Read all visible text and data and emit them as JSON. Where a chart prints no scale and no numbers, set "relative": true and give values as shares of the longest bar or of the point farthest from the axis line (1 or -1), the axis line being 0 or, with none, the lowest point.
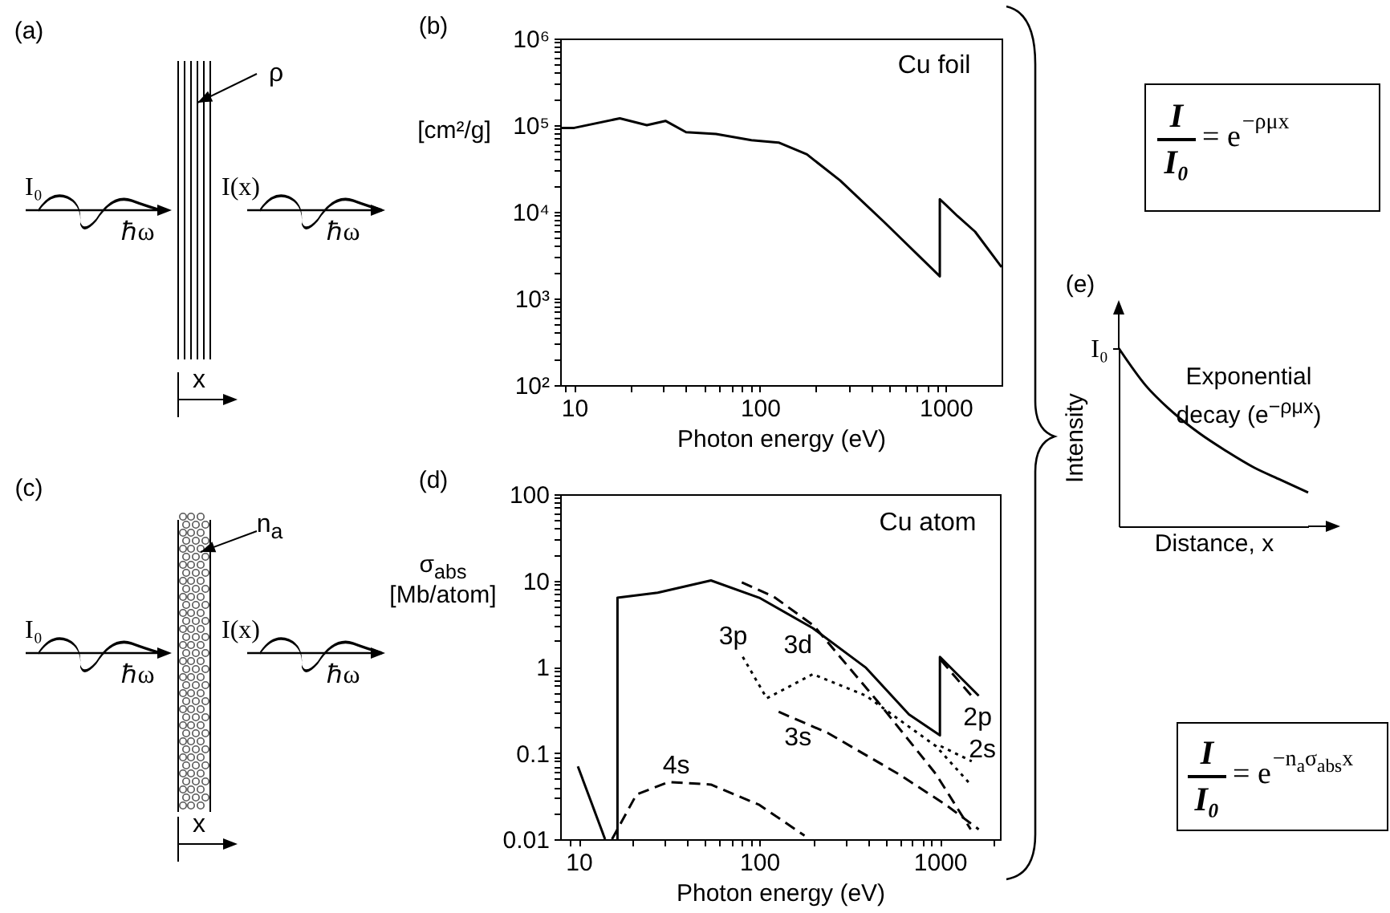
{
  "chart_data": [
    {
      "type": "other",
      "title": "(a)",
      "annotations": [
        "ρ",
        "I₀",
        "ℏω",
        "I(x)",
        "ℏω",
        "x"
      ]
    },
    {
      "type": "line",
      "title": "(b)",
      "xlabel": "Photon energy (eV)",
      "ylabel": "[cm²/g]",
      "annotations": [
        "Cu foil"
      ],
      "log": "xy",
      "color": "#000000",
      "x": [
        8.5,
        10,
        17.6,
        24.6,
        31,
        40,
        58,
        90,
        126,
        179,
        270,
        464,
        930,
        930,
        1160,
        1440,
        2000
      ],
      "values": [
        93000,
        93000,
        120000,
        100000,
        112000,
        83000,
        79000,
        67000,
        63000,
        46000,
        23000,
        7700,
        1800,
        14000,
        8900,
        5900,
        2300
      ],
      "xlim": [
        8.4,
        2000
      ],
      "ylim": [
        100,
        1000000
      ],
      "xticks": [
        {
          "value": 9,
          "label": null
        },
        10,
        {
          "value": 20,
          "label": null
        },
        {
          "value": 30,
          "label": null
        },
        {
          "value": 40,
          "label": null
        },
        {
          "value": 50,
          "label": null
        },
        {
          "value": 60,
          "label": null
        },
        {
          "value": 70,
          "label": null
        },
        {
          "value": 80,
          "label": null
        },
        {
          "value": 90,
          "label": null
        },
        100,
        {
          "value": 200,
          "label": null
        },
        {
          "value": 300,
          "label": null
        },
        {
          "value": 400,
          "label": null
        },
        {
          "value": 500,
          "label": null
        },
        {
          "value": 600,
          "label": null
        },
        {
          "value": 700,
          "label": null
        },
        {
          "value": 800,
          "label": null
        },
        {
          "value": 900,
          "label": null
        },
        1000
      ],
      "yticks": [
        {
          "value": 100,
          "label": "10²"
        },
        {
          "value": 200,
          "label": null
        },
        {
          "value": 300,
          "label": null
        },
        {
          "value": 400,
          "label": null
        },
        {
          "value": 500,
          "label": null
        },
        {
          "value": 600,
          "label": null
        },
        {
          "value": 700,
          "label": null
        },
        {
          "value": 800,
          "label": null
        },
        {
          "value": 900,
          "label": null
        },
        {
          "value": 1000,
          "label": "10³"
        },
        {
          "value": 2000,
          "label": null
        },
        {
          "value": 3000,
          "label": null
        },
        {
          "value": 4000,
          "label": null
        },
        {
          "value": 5000,
          "label": null
        },
        {
          "value": 6000,
          "label": null
        },
        {
          "value": 7000,
          "label": null
        },
        {
          "value": 8000,
          "label": null
        },
        {
          "value": 9000,
          "label": null
        },
        {
          "value": 10000,
          "label": "10⁴"
        },
        {
          "value": 20000,
          "label": null
        },
        {
          "value": 30000,
          "label": null
        },
        {
          "value": 40000,
          "label": null
        },
        {
          "value": 50000,
          "label": null
        },
        {
          "value": 60000,
          "label": null
        },
        {
          "value": 70000,
          "label": null
        },
        {
          "value": 80000,
          "label": null
        },
        {
          "value": 90000,
          "label": null
        },
        {
          "value": 100000,
          "label": "10⁵"
        },
        {
          "value": 200000,
          "label": null
        },
        {
          "value": 300000,
          "label": null
        },
        {
          "value": 400000,
          "label": null
        },
        {
          "value": 500000,
          "label": null
        },
        {
          "value": 600000,
          "label": null
        },
        {
          "value": 700000,
          "label": null
        },
        {
          "value": 800000,
          "label": null
        },
        {
          "value": 900000,
          "label": null
        },
        {
          "value": 1000000,
          "label": "10⁶"
        }
      ]
    },
    {
      "type": "other",
      "title": "(c)",
      "annotations": [
        "n$_{a}$",
        "I₀",
        "ℏω",
        "I(x)",
        "ℏω",
        "x"
      ]
    },
    {
      "type": "line",
      "title": "(d)",
      "xlabel": "Photon energy (eV)",
      "ylabel": "σ$_{abs}$ [Mb/atom]",
      "annotations": [
        "Cu atom"
      ],
      "log": "xy",
      "series": [
        {
          "color": "#000000",
          "line_style": "solid",
          "x": [
            16.4,
            16.4,
            27.4,
            54,
            100,
            198,
            390,
            674,
            1000,
            1000,
            1640
          ],
          "values": [
            0.01,
            6.3,
            7.2,
            10,
            6.3,
            2.8,
            0.97,
            0.28,
            0.16,
            1.3,
            0.46
          ]
        },
        {
          "name": "3d",
          "color": "#000000",
          "line_style": "dashed",
          "x": [
            80,
            120,
            200,
            450,
            950,
            1480
          ],
          "values": [
            9.5,
            6.5,
            3,
            0.4,
            0.057,
            0.013
          ]
        },
        {
          "name": "3p",
          "color": "#000000",
          "line_style": "dotted",
          "x": [
            81,
            110,
            198,
            390,
            950,
            1480
          ],
          "values": [
            1.3,
            0.43,
            0.82,
            0.46,
            0.12,
            0.043
          ]
        },
        {
          "name": "3s",
          "color": "#000000",
          "line_style": "dashed",
          "x": [
            128,
            240,
            590,
            1080,
            1640
          ],
          "values": [
            0.3,
            0.17,
            0.057,
            0.025,
            0.013
          ]
        },
        {
          "name": "4s",
          "color": "#000000",
          "line_style": "dashed",
          "x": [
            15.3,
            20.9,
            31.4,
            54,
            100,
            178
          ],
          "values": [
            0.01,
            0.033,
            0.046,
            0.043,
            0.025,
            0.011
          ]
        },
        {
          "name": "2p",
          "color": "#000000",
          "line_style": "dashed",
          "x": [
            1010,
            1550
          ],
          "values": [
            1.2,
            0.42
          ]
        },
        {
          "name": "2s",
          "color": "#000000",
          "line_style": "dotted",
          "x": [
            1010,
            1500
          ],
          "values": [
            0.12,
            0.08
          ]
        },
        {
          "color": "#000000",
          "line_style": "solid",
          "x": [
            9.9,
            14
          ],
          "values": [
            0.07,
            0.01
          ]
        }
      ],
      "xlim": [
        7.9,
        2150
      ],
      "ylim": [
        0.01,
        100
      ],
      "xticks": [
        {
          "value": 9,
          "label": null
        },
        10,
        {
          "value": 20,
          "label": null
        },
        {
          "value": 30,
          "label": null
        },
        {
          "value": 40,
          "label": null
        },
        {
          "value": 50,
          "label": null
        },
        {
          "value": 60,
          "label": null
        },
        {
          "value": 70,
          "label": null
        },
        {
          "value": 80,
          "label": null
        },
        {
          "value": 90,
          "label": null
        },
        100,
        {
          "value": 200,
          "label": null
        },
        {
          "value": 300,
          "label": null
        },
        {
          "value": 400,
          "label": null
        },
        {
          "value": 500,
          "label": null
        },
        {
          "value": 600,
          "label": null
        },
        {
          "value": 700,
          "label": null
        },
        {
          "value": 800,
          "label": null
        },
        {
          "value": 900,
          "label": null
        },
        1000,
        {
          "value": 2000,
          "label": null
        }
      ],
      "yticks": [
        0.01,
        {
          "value": 0.02,
          "label": null
        },
        {
          "value": 0.03,
          "label": null
        },
        {
          "value": 0.04,
          "label": null
        },
        {
          "value": 0.05,
          "label": null
        },
        {
          "value": 0.06,
          "label": null
        },
        {
          "value": 0.07,
          "label": null
        },
        {
          "value": 0.08,
          "label": null
        },
        {
          "value": 0.09,
          "label": null
        },
        0.1,
        {
          "value": 0.2,
          "label": null
        },
        {
          "value": 0.3,
          "label": null
        },
        {
          "value": 0.4,
          "label": null
        },
        {
          "value": 0.5,
          "label": null
        },
        {
          "value": 0.6,
          "label": null
        },
        {
          "value": 0.7,
          "label": null
        },
        {
          "value": 0.8,
          "label": null
        },
        {
          "value": 0.9,
          "label": null
        },
        1,
        {
          "value": 2,
          "label": null
        },
        {
          "value": 3,
          "label": null
        },
        {
          "value": 4,
          "label": null
        },
        {
          "value": 5,
          "label": null
        },
        {
          "value": 6,
          "label": null
        },
        {
          "value": 7,
          "label": null
        },
        {
          "value": 8,
          "label": null
        },
        {
          "value": 9,
          "label": null
        },
        10,
        {
          "value": 20,
          "label": null
        },
        {
          "value": 30,
          "label": null
        },
        {
          "value": 40,
          "label": null
        },
        {
          "value": 50,
          "label": null
        },
        {
          "value": 60,
          "label": null
        },
        {
          "value": 70,
          "label": null
        },
        {
          "value": 80,
          "label": null
        },
        {
          "value": 90,
          "label": null
        },
        100
      ]
    },
    {
      "type": "line",
      "relative": true,
      "title": "(e)",
      "xlabel": "Distance, x",
      "ylabel": "Intensity",
      "color": "#000000",
      "annotations": [
        "Exponential decay (e$^{−ρμx}$)"
      ],
      "categories": [
        null,
        null,
        null,
        null,
        null,
        null,
        null,
        null
      ],
      "values": [
        1,
        0.79,
        0.64,
        0.52,
        0.42,
        0.33,
        0.26,
        0.19
      ],
      "ref_lines": [
        {
          "axis": "y",
          "value": 1,
          "label": "I₀"
        }
      ]
    },
    {
      "type": "other",
      "annotations": [
        "I",
        "I₀",
        "= e",
        "−ρμx"
      ]
    },
    {
      "type": "other",
      "annotations": [
        "I",
        "I₀",
        "= e",
        "−n$_{a}$σ$_{abs}$x"
      ]
    }
  ]
}
